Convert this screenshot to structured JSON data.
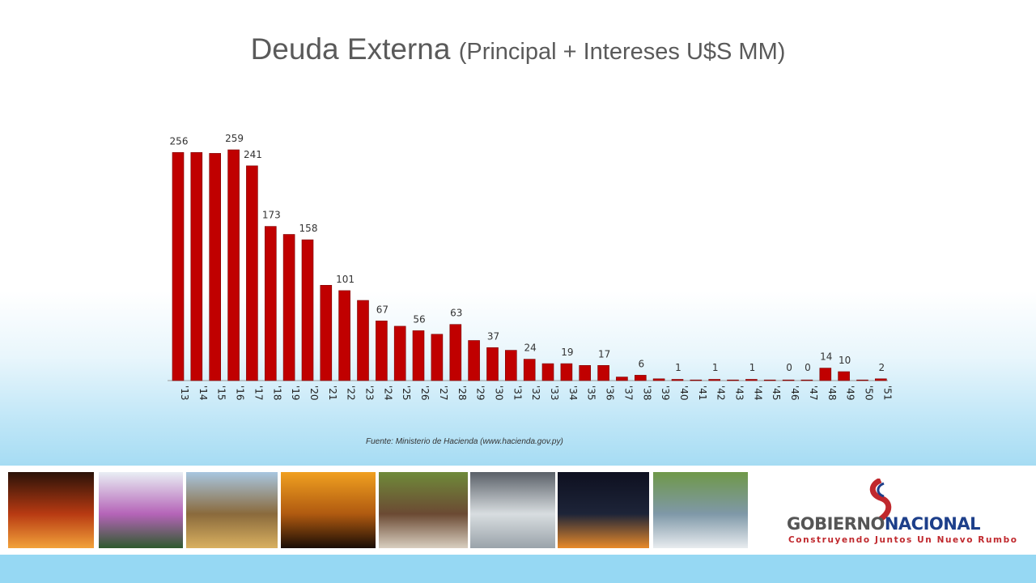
{
  "slide": {
    "title_main": "Deuda Externa",
    "title_sub": "(Principal + Intereses U$S MM)",
    "source": "Fuente: Ministerio de Hacienda (www.hacienda.gov.py)"
  },
  "chart_data": {
    "type": "bar",
    "title": "Deuda Externa (Principal + Intereses U$S MM)",
    "xlabel": "",
    "ylabel": "",
    "ylim": [
      0,
      259
    ],
    "grid": false,
    "bar_color": "#c00000",
    "categories": [
      "'13",
      "'14",
      "'15",
      "'16",
      "'17",
      "'18",
      "'19",
      "'20",
      "'21",
      "'22",
      "'23",
      "'24",
      "'25",
      "'26",
      "'27",
      "'28",
      "'29",
      "'30",
      "'31",
      "'32",
      "'33",
      "'34",
      "'35",
      "'36",
      "'37",
      "'38",
      "'39",
      "'40",
      "'41",
      "'42",
      "'43",
      "'44",
      "'45",
      "'46",
      "'47",
      "'48",
      "'49",
      "'50",
      "'51"
    ],
    "values": [
      256,
      256,
      255,
      259,
      241,
      173,
      164,
      158,
      107,
      101,
      90,
      67,
      61,
      56,
      52,
      63,
      45,
      37,
      34,
      24,
      19,
      19,
      17,
      17,
      4,
      6,
      2,
      1,
      0,
      1,
      0,
      1,
      0,
      0,
      0,
      14,
      10,
      0,
      2
    ],
    "data_labels": [
      {
        "index": 0,
        "text": "256"
      },
      {
        "index": 3,
        "text": "259"
      },
      {
        "index": 4,
        "text": "241"
      },
      {
        "index": 5,
        "text": "173"
      },
      {
        "index": 7,
        "text": "158"
      },
      {
        "index": 9,
        "text": "101"
      },
      {
        "index": 11,
        "text": "67"
      },
      {
        "index": 13,
        "text": "56"
      },
      {
        "index": 15,
        "text": "63"
      },
      {
        "index": 17,
        "text": "37"
      },
      {
        "index": 19,
        "text": "24"
      },
      {
        "index": 21,
        "text": "19"
      },
      {
        "index": 23,
        "text": "17"
      },
      {
        "index": 25,
        "text": "6"
      },
      {
        "index": 27,
        "text": "1"
      },
      {
        "index": 29,
        "text": "1"
      },
      {
        "index": 31,
        "text": "1"
      },
      {
        "index": 33,
        "text": "0"
      },
      {
        "index": 34,
        "text": "0"
      },
      {
        "index": 35,
        "text": "14"
      },
      {
        "index": 36,
        "text": "10"
      },
      {
        "index": 38,
        "text": "2"
      }
    ]
  },
  "footer": {
    "photos": [
      {
        "name": "palace-at-night-photo",
        "colors": [
          "#2a1208",
          "#b83a12",
          "#f2a23a"
        ]
      },
      {
        "name": "lapacho-tree-photo",
        "colors": [
          "#e9eef4",
          "#b564b8",
          "#2f5a2e"
        ]
      },
      {
        "name": "soybean-harvest-photo",
        "colors": [
          "#a8c6e0",
          "#8a6a3c",
          "#d9b060"
        ]
      },
      {
        "name": "sunset-palm-photo",
        "colors": [
          "#f0a020",
          "#b05a10",
          "#1a0d05"
        ]
      },
      {
        "name": "cattle-herd-photo",
        "colors": [
          "#6f8a3a",
          "#6b4a33",
          "#d9cfc0"
        ]
      },
      {
        "name": "factory-workers-photo",
        "colors": [
          "#5a6068",
          "#d8dde0",
          "#9aa3aa"
        ]
      },
      {
        "name": "city-lights-photo",
        "colors": [
          "#0e1020",
          "#1d2438",
          "#e88a2a"
        ]
      },
      {
        "name": "river-barge-photo",
        "colors": [
          "#6f9848",
          "#7f98a8",
          "#e8ecef"
        ]
      }
    ],
    "logo_word_gob": "GOBIERNO",
    "logo_word_nac": "NACIONAL",
    "logo_tagline": "Construyendo Juntos Un Nuevo Rumbo",
    "logo_colors": [
      "#c0282d",
      "#1d3f8a"
    ],
    "bottom_band_color": "#96d8f3"
  }
}
